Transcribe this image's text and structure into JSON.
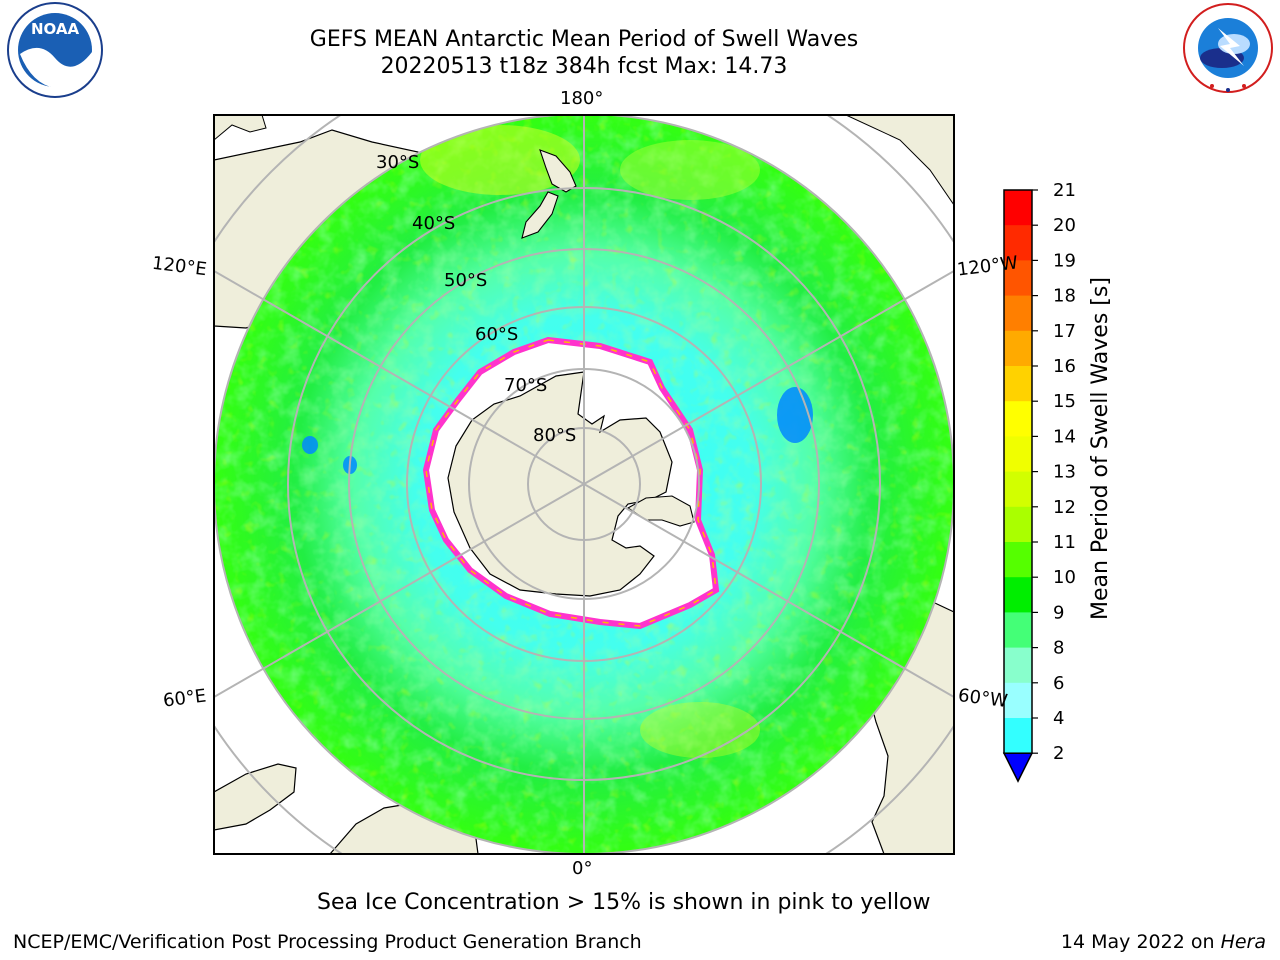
{
  "header": {
    "title_line1": "GEFS MEAN Antarctic Mean Period of Swell Waves",
    "title_line2": "20220513 t18z 384h fcst   Max: 14.73"
  },
  "logos": {
    "left": {
      "name": "noaa-logo",
      "text": "NOAA"
    },
    "right": {
      "name": "nws-logo",
      "text": "NATIONAL WEATHER SERVICE"
    }
  },
  "map": {
    "projection": "south-polar-stereographic",
    "longitude_labels": {
      "top": "180°",
      "upper_left": "120°E",
      "upper_right": "120°W",
      "lower_left": "60°E",
      "lower_right": "60°W",
      "bottom": "0°"
    },
    "latitude_labels": [
      "30°S",
      "40°S",
      "50°S",
      "60°S",
      "70°S",
      "80°S"
    ],
    "colors": {
      "land": "#efeedb",
      "ocean_missing": "#ffffff",
      "grid": "#b4b4b4",
      "coast": "#000000",
      "sea_ice": "#ff33cc"
    }
  },
  "colorbar": {
    "label": "Mean Period of Swell Waves [s]",
    "ticks": [
      "21",
      "20",
      "19",
      "18",
      "17",
      "16",
      "15",
      "14",
      "13",
      "12",
      "11",
      "10",
      "9",
      "8",
      "6",
      "4",
      "2"
    ],
    "colors_top_to_bottom": [
      "#ff0000",
      "#ff2a00",
      "#ff5500",
      "#ff7f00",
      "#ffaa00",
      "#ffd200",
      "#ffff00",
      "#f0ff00",
      "#d2ff00",
      "#aaff00",
      "#55ff00",
      "#00ee00",
      "#44ff77",
      "#88ffcc",
      "#99ffff",
      "#33ffff",
      "#00eeff",
      "#0077ff",
      "#0000ff"
    ]
  },
  "notes": {
    "sea_ice": "Sea Ice Concentration > 15% is shown in pink to yellow"
  },
  "footer": {
    "left": "NCEP/EMC/Verification Post Processing Product Generation Branch",
    "right_prefix": "14 May 2022 on ",
    "right_host": "Hera"
  }
}
